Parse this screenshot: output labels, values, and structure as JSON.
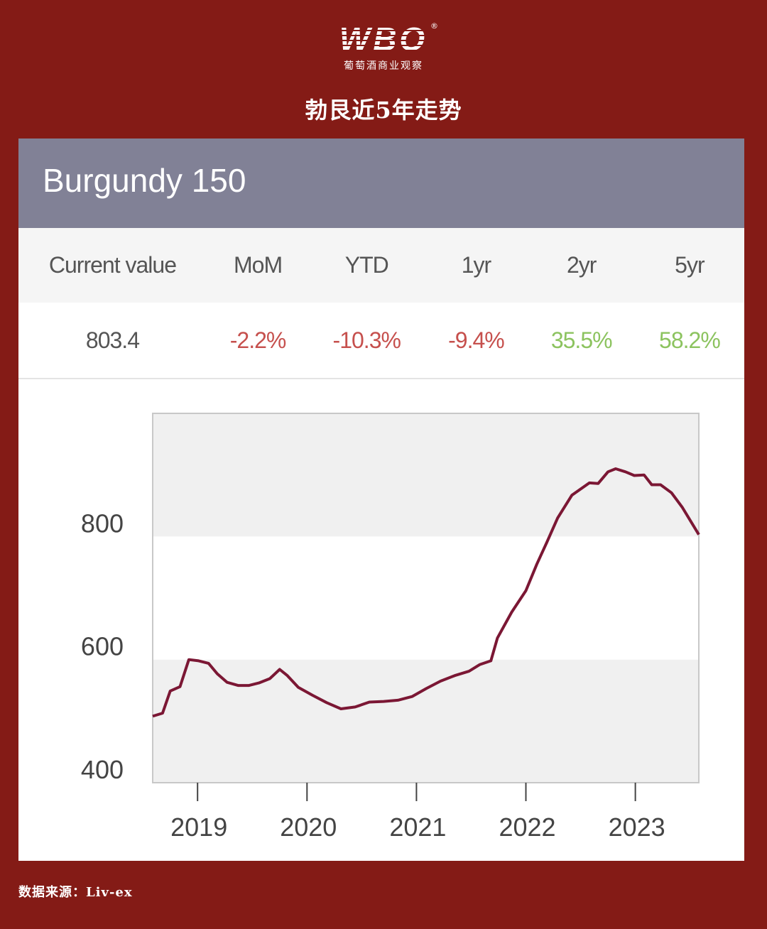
{
  "logo": {
    "mark": "WBO",
    "subtitle": "葡萄酒商业观察",
    "registered": "®"
  },
  "page_title": "勃艮近5年走势",
  "card": {
    "title": "Burgundy 150",
    "headers": [
      "Current value",
      "MoM",
      "YTD",
      "1yr",
      "2yr",
      "5yr"
    ],
    "values": [
      "803.4",
      "-2.2%",
      "-10.3%",
      "-9.4%",
      "35.5%",
      "58.2%"
    ]
  },
  "colors": {
    "background": "#841b16",
    "header": "#818196",
    "negative": "#c6504d",
    "positive": "#8cc35f",
    "line": "#7b1734"
  },
  "chart_data": {
    "type": "line",
    "title": "",
    "xlabel": "",
    "ylabel": "",
    "xlim": [
      2018.59,
      2023.58
    ],
    "ylim": [
      400,
      1000
    ],
    "x_ticks": [
      2019,
      2020,
      2021,
      2022,
      2023
    ],
    "x_tick_labels": [
      "2019",
      "2020",
      "2021",
      "2022",
      "2023"
    ],
    "y_ticks": [
      400,
      600,
      800
    ],
    "y_tick_labels": [
      "400",
      "600",
      "800"
    ],
    "grid": "alternating horizontal bands",
    "series": [
      {
        "name": "Burgundy 150",
        "x": [
          2018.59,
          2018.68,
          2018.75,
          2018.84,
          2018.92,
          2019.01,
          2019.1,
          2019.18,
          2019.27,
          2019.37,
          2019.47,
          2019.56,
          2019.66,
          2019.75,
          2019.82,
          2019.92,
          2020.05,
          2020.18,
          2020.31,
          2020.44,
          2020.57,
          2020.7,
          2020.83,
          2020.96,
          2021.09,
          2021.22,
          2021.35,
          2021.48,
          2021.58,
          2021.68,
          2021.74,
          2021.87,
          2022.0,
          2022.1,
          2022.19,
          2022.29,
          2022.42,
          2022.58,
          2022.66,
          2022.75,
          2022.82,
          2022.91,
          2022.99,
          2023.08,
          2023.15,
          2023.23,
          2023.33,
          2023.43,
          2023.58
        ],
        "y": [
          508,
          513,
          549,
          556,
          600,
          598,
          594,
          577,
          563,
          558,
          558,
          562,
          569,
          584,
          574,
          555,
          542,
          530,
          520,
          523,
          531,
          532,
          534,
          540,
          553,
          565,
          574,
          581,
          592,
          598,
          635,
          677,
          712,
          755,
          790,
          830,
          867,
          887,
          886,
          905,
          910,
          905,
          899,
          900,
          884,
          884,
          871,
          847,
          803
        ]
      }
    ]
  },
  "source": "数据来源：Liv-ex"
}
